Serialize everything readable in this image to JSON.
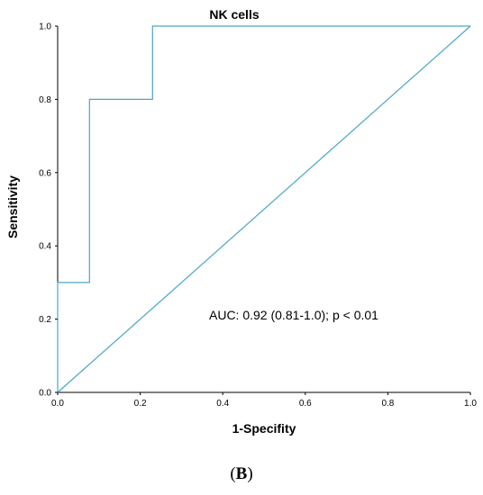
{
  "chart_data": {
    "type": "line",
    "title": "NK cells",
    "xlabel": "1-Specifity",
    "ylabel": "Sensitivity",
    "xlim": [
      0.0,
      1.0
    ],
    "ylim": [
      0.0,
      1.0
    ],
    "xticks": [
      "0.0",
      "0.2",
      "0.4",
      "0.6",
      "0.8",
      "1.0"
    ],
    "yticks": [
      "0.0",
      "0.2",
      "0.4",
      "0.6",
      "0.8",
      "1.0"
    ],
    "grid": false,
    "series": [
      {
        "x": [
          0.0,
          0.0,
          0.077,
          0.077,
          0.23,
          0.23,
          1.0
        ],
        "y": [
          0.0,
          0.3,
          0.3,
          0.8,
          0.8,
          1.0,
          1.0
        ],
        "color": "#4aa6c8"
      },
      {
        "x": [
          0.0,
          1.0
        ],
        "y": [
          0.0,
          1.0
        ],
        "color": "#4aa6c8"
      }
    ],
    "annotations": [
      "AUC: 0.92 (0.81-1.0); p < 0.01"
    ]
  },
  "caption": {
    "open": "(",
    "letter": "B",
    "close": ")"
  }
}
